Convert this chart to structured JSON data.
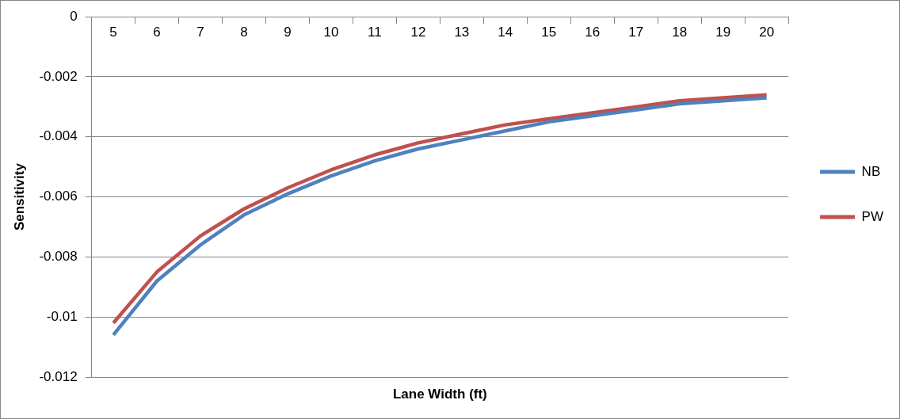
{
  "chart_data": {
    "type": "line",
    "xlabel": "Lane Width (ft)",
    "ylabel": "Sensitivity",
    "categories": [
      "5",
      "6",
      "7",
      "8",
      "9",
      "10",
      "11",
      "12",
      "13",
      "14",
      "15",
      "16",
      "17",
      "18",
      "19",
      "20"
    ],
    "series": [
      {
        "name": "NB",
        "color": "#4f81bd",
        "values": [
          -0.0106,
          -0.0088,
          -0.0076,
          -0.0066,
          -0.0059,
          -0.0053,
          -0.0048,
          -0.0044,
          -0.0041,
          -0.0038,
          -0.0035,
          -0.0033,
          -0.0031,
          -0.0029,
          -0.0028,
          -0.0027
        ]
      },
      {
        "name": "PW",
        "color": "#c0504d",
        "values": [
          -0.0102,
          -0.0085,
          -0.0073,
          -0.0064,
          -0.0057,
          -0.0051,
          -0.0046,
          -0.0042,
          -0.0039,
          -0.0036,
          -0.0034,
          -0.0032,
          -0.003,
          -0.0028,
          -0.0027,
          -0.0026
        ]
      }
    ],
    "ylim": [
      -0.012,
      0
    ],
    "yticks": [
      0,
      -0.002,
      -0.004,
      -0.006,
      -0.008,
      -0.01,
      -0.012
    ],
    "grid": "y",
    "legend": "right",
    "marker": "none",
    "line_style": "solid"
  }
}
